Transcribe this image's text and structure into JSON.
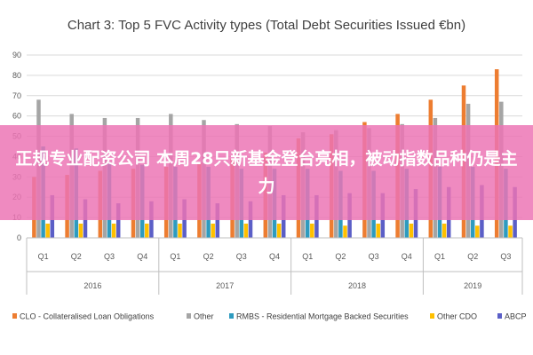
{
  "chart_data": {
    "type": "bar",
    "title": "Chart 3: Top 5 FVC Activity types (Total Debt Securities Issued €bn)",
    "ylim": [
      0,
      90
    ],
    "yticks": [
      0,
      10,
      20,
      30,
      40,
      50,
      60,
      70,
      80,
      90
    ],
    "grid": true,
    "legend_position": "bottom",
    "categories": [
      "Q1",
      "Q2",
      "Q3",
      "Q4",
      "Q1",
      "Q2",
      "Q3",
      "Q4",
      "Q1",
      "Q2",
      "Q3",
      "Q4",
      "Q1",
      "Q2",
      "Q3"
    ],
    "years": [
      {
        "label": "2016",
        "quarters": 4
      },
      {
        "label": "2017",
        "quarters": 4
      },
      {
        "label": "2018",
        "quarters": 4
      },
      {
        "label": "2019",
        "quarters": 3
      }
    ],
    "series": [
      {
        "name": "CLO - Collateralised Loan Obligations",
        "color": "#ed7d31",
        "values": [
          30,
          31,
          33,
          34,
          35,
          37,
          39,
          42,
          49,
          51,
          57,
          61,
          68,
          75,
          83
        ]
      },
      {
        "name": "Other",
        "color": "#a5a5a5",
        "values": [
          68,
          61,
          59,
          59,
          61,
          58,
          56,
          55,
          52,
          53,
          54,
          56,
          59,
          66,
          67
        ]
      },
      {
        "name": "RMBS - Residential Mortgage Backed Securities",
        "color": "#2e9bbf",
        "values": [
          45,
          44,
          37,
          36,
          35,
          35,
          34,
          34,
          34,
          33,
          33,
          34,
          35,
          35,
          34
        ]
      },
      {
        "name": "Other CDO",
        "color": "#ffc000",
        "values": [
          7,
          7,
          7,
          7,
          7,
          7,
          7,
          7,
          7,
          6,
          7,
          7,
          7,
          6,
          6
        ]
      },
      {
        "name": "ABCP",
        "color": "#5b5fc7",
        "values": [
          21,
          19,
          17,
          18,
          19,
          17,
          18,
          21,
          21,
          22,
          22,
          24,
          25,
          26,
          25
        ]
      }
    ]
  },
  "banner": {
    "text": "正规专业配资公司 本周28只新基金登台亮相，被动指数品种仍是主力"
  }
}
